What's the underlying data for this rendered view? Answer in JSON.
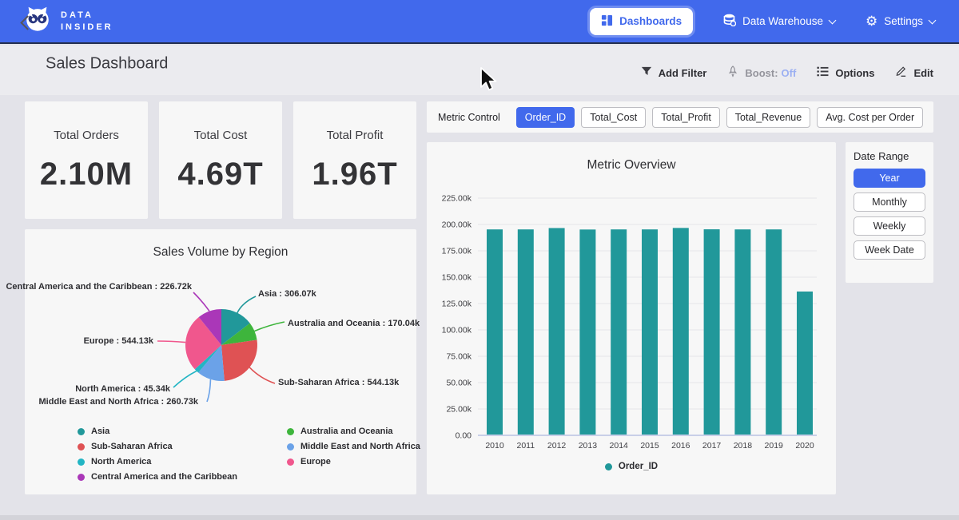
{
  "nav": {
    "brand_line1": "DATA",
    "brand_line2": "INSIDER",
    "dashboards_label": "Dashboards",
    "data_warehouse_label": "Data Warehouse",
    "settings_label": "Settings"
  },
  "header": {
    "title": "Sales Dashboard",
    "add_filter_label": "Add Filter",
    "boost_label": "Boost:",
    "boost_value": "Off",
    "options_label": "Options",
    "edit_label": "Edit"
  },
  "kpis": [
    {
      "label": "Total Orders",
      "value": "2.10M"
    },
    {
      "label": "Total Cost",
      "value": "4.69T"
    },
    {
      "label": "Total Profit",
      "value": "1.96T"
    }
  ],
  "metric_control": {
    "label": "Metric Control",
    "chips": [
      {
        "label": "Order_ID",
        "selected": true
      },
      {
        "label": "Total_Cost",
        "selected": false
      },
      {
        "label": "Total_Profit",
        "selected": false
      },
      {
        "label": "Total_Revenue",
        "selected": false
      },
      {
        "label": "Avg. Cost per Order",
        "selected": false
      }
    ]
  },
  "date_range": {
    "label": "Date Range",
    "options": [
      {
        "label": "Year",
        "selected": true
      },
      {
        "label": "Monthly",
        "selected": false
      },
      {
        "label": "Weekly",
        "selected": false
      },
      {
        "label": "Week Date",
        "selected": false
      }
    ]
  },
  "colors": {
    "accent": "#4169ec",
    "bar": "#21989a",
    "axis_line": "#c9cfe8",
    "grid_line": "#e6e6ea"
  },
  "chart_data": [
    {
      "type": "bar",
      "title": "Metric Overview",
      "categories": [
        "2010",
        "2011",
        "2012",
        "2013",
        "2014",
        "2015",
        "2016",
        "2017",
        "2018",
        "2019",
        "2020"
      ],
      "series": [
        {
          "name": "Order_ID",
          "values": [
            195300,
            195300,
            196600,
            195200,
            195300,
            195300,
            196700,
            195400,
            195300,
            195300,
            136400
          ]
        }
      ],
      "ylim": [
        0,
        225000
      ],
      "ytick_step": 25000,
      "yticks": [
        "0.00",
        "25.00k",
        "50.00k",
        "75.00k",
        "100.00k",
        "125.00k",
        "150.00k",
        "175.00k",
        "200.00k",
        "225.00k"
      ],
      "legend": "Order_ID",
      "legend_position": "bottom",
      "grid": true
    },
    {
      "type": "pie",
      "title": "Sales Volume by Region",
      "slices": [
        {
          "name": "Asia",
          "value": 306070,
          "display": "306.07k",
          "label": "Asia : 306.07k",
          "color": "#21989a"
        },
        {
          "name": "Australia and Oceania",
          "value": 170040,
          "display": "170.04k",
          "label": "Australia and Oceania : 170.04k",
          "color": "#3eb53c"
        },
        {
          "name": "Sub-Saharan Africa",
          "value": 544130,
          "display": "544.13k",
          "label": "Sub-Saharan Africa : 544.13k",
          "color": "#df5254"
        },
        {
          "name": "Middle East and North Africa",
          "value": 260730,
          "display": "260.73k",
          "label": "Middle East and North Africa : 260.73k",
          "color": "#6ba2e8"
        },
        {
          "name": "North America",
          "value": 45340,
          "display": "45.34k",
          "label": "North America : 45.34k",
          "color": "#22b5c4"
        },
        {
          "name": "Europe",
          "value": 544130,
          "display": "544.13k",
          "label": "Europe : 544.13k",
          "color": "#f0578d"
        },
        {
          "name": "Central America and the Caribbean",
          "value": 226720,
          "display": "226.72k",
          "label": "Central America and the Caribbean : 226.72k",
          "color": "#aa37b8"
        }
      ],
      "legend_position": "bottom"
    }
  ]
}
